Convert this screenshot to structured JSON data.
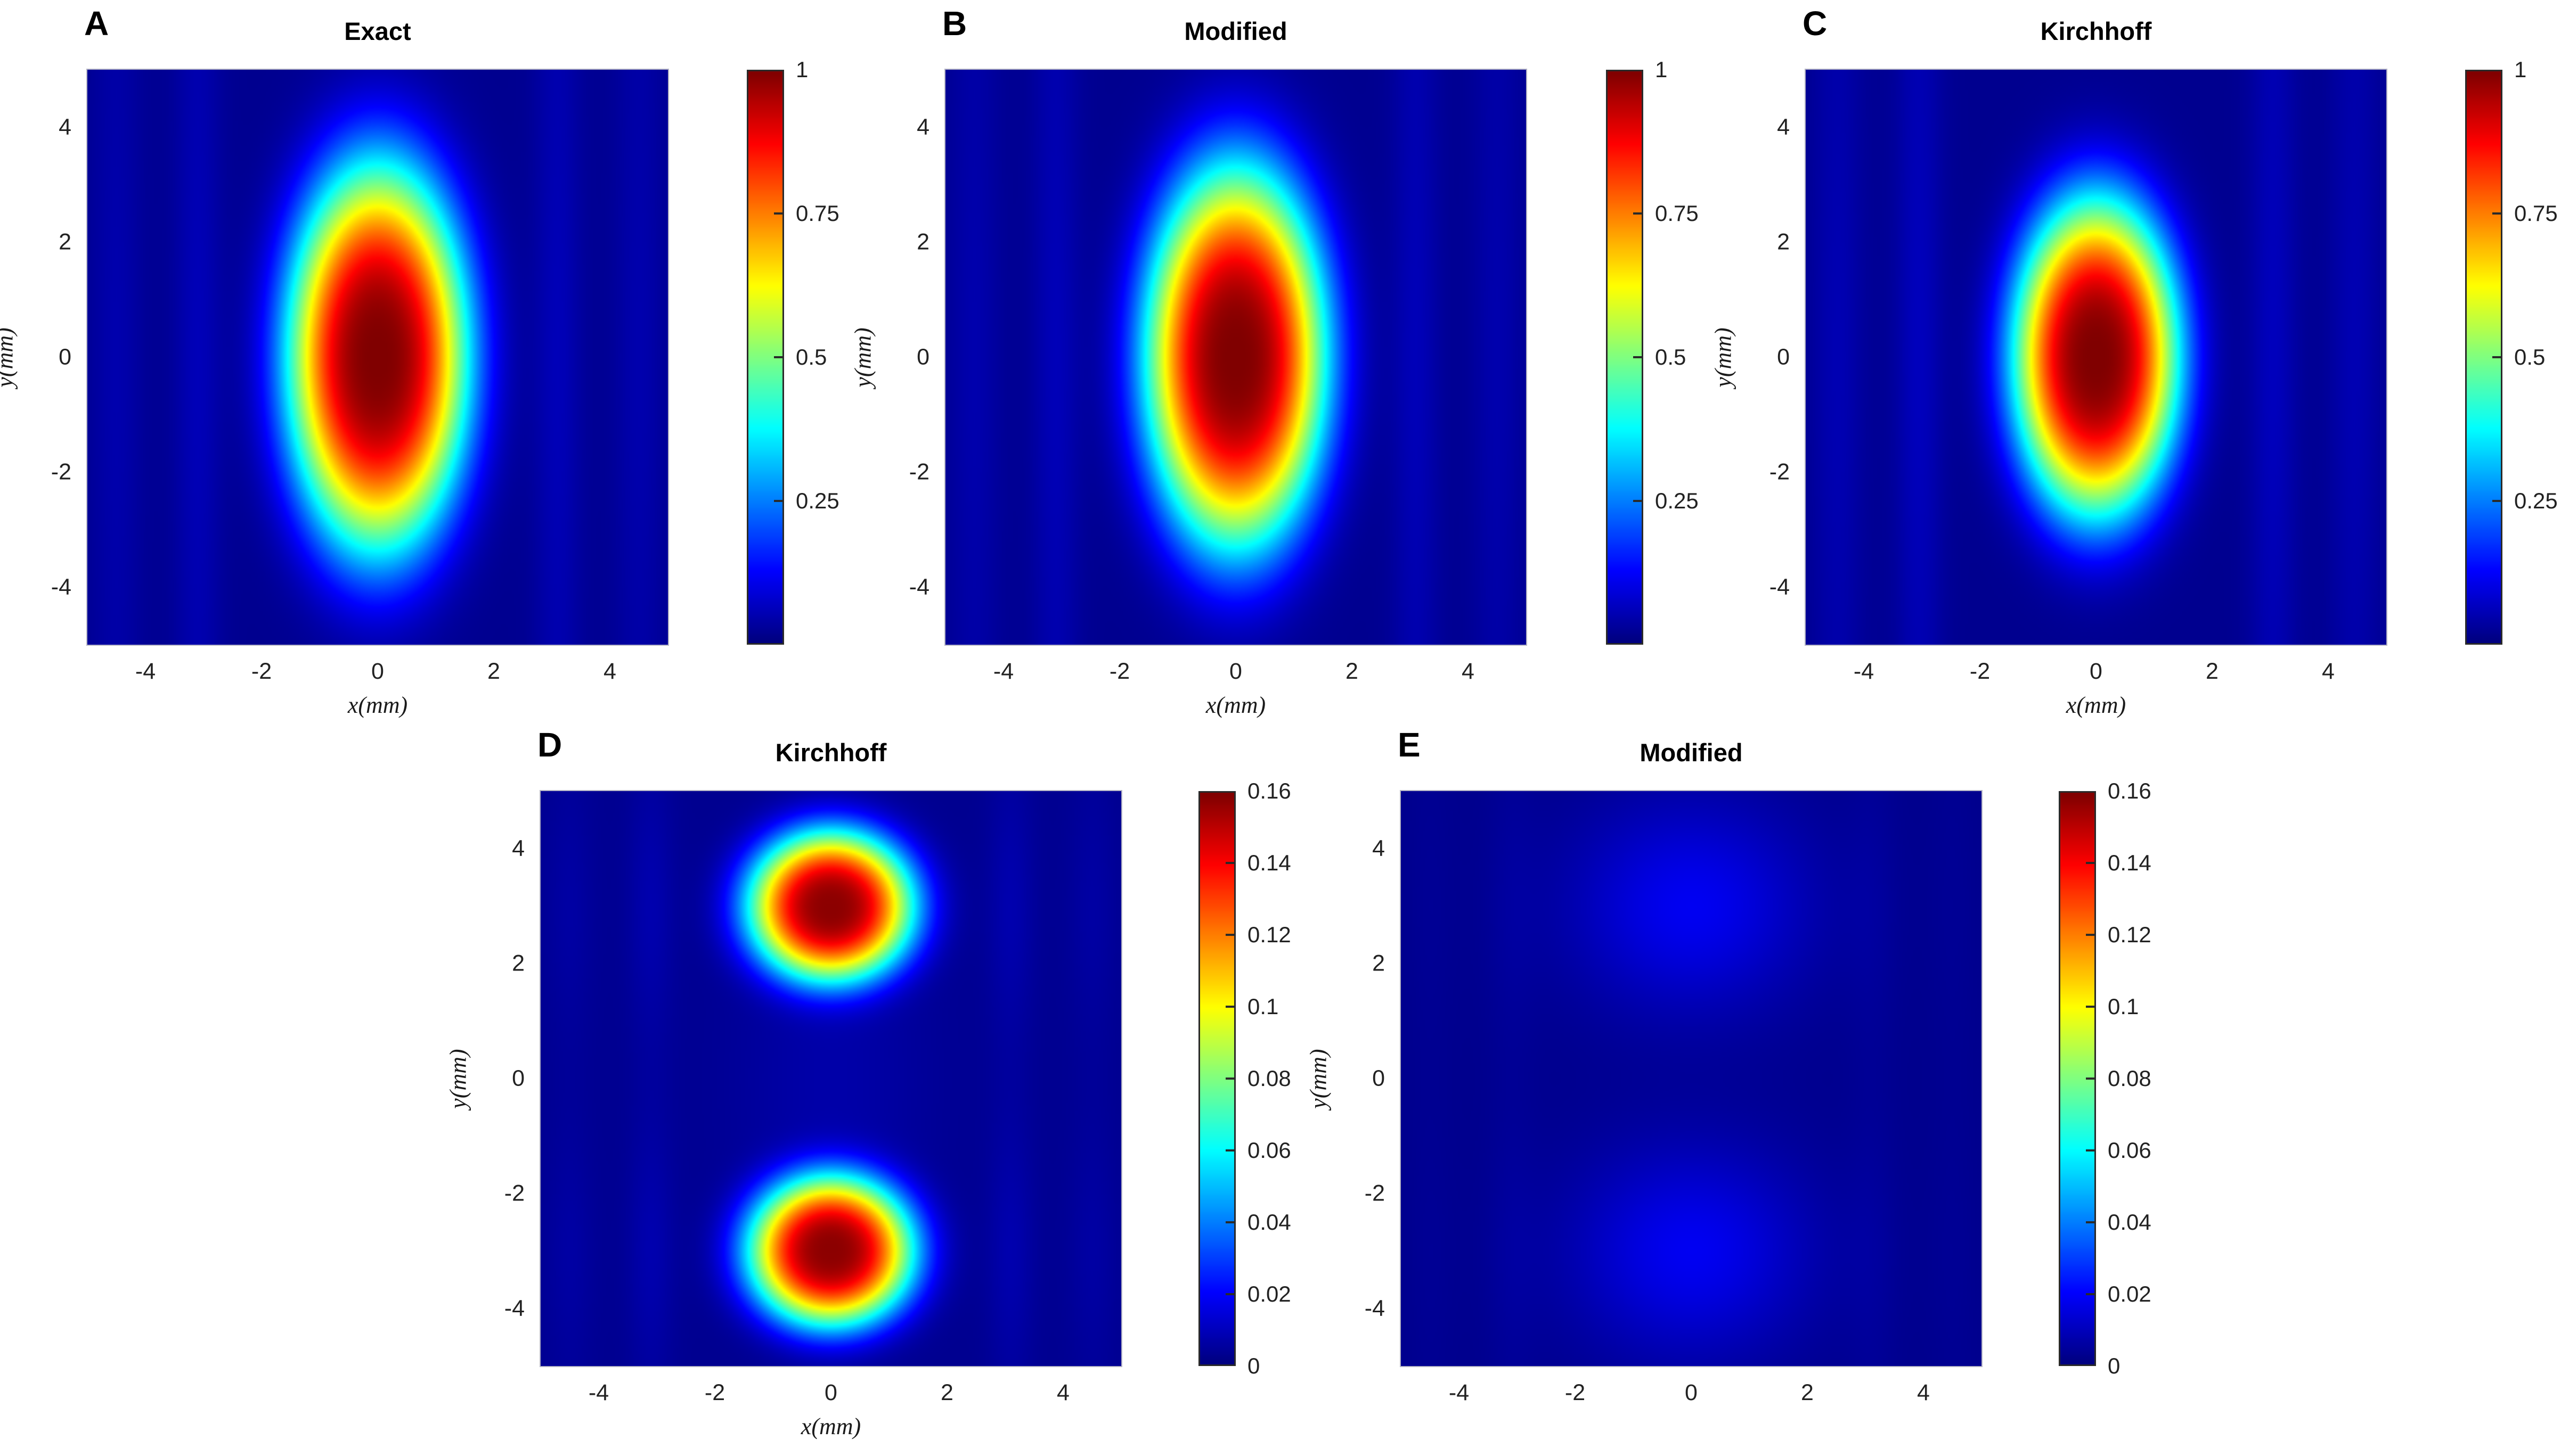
{
  "figure": {
    "background": "#ffffff",
    "colormap": "jet",
    "min_color": "#000080",
    "max_color": "#800000"
  },
  "chart_data": [
    {
      "id": "A",
      "panel_label": "A",
      "type": "heatmap",
      "title": "Exact",
      "xlabel": "x(mm)",
      "ylabel": "y(mm)",
      "x_range": [
        -5,
        5
      ],
      "y_range": [
        -5,
        5
      ],
      "x_ticks": [
        -4,
        -2,
        0,
        2,
        4
      ],
      "y_ticks": [
        4,
        2,
        0,
        -2,
        -4
      ],
      "colorbar": {
        "min": 0,
        "max": 1,
        "ticks": [
          {
            "value": 1,
            "label": "1"
          },
          {
            "value": 0.75,
            "label": "0.75"
          },
          {
            "value": 0.5,
            "label": "0.5"
          },
          {
            "value": 0.25,
            "label": "0.25"
          }
        ]
      },
      "model": {
        "base": 0.015,
        "blobs": [
          {
            "cx": 0,
            "cy": 0,
            "rx": 1.55,
            "ry": 3.35,
            "amp": 0.985,
            "power": 3
          }
        ],
        "stripes": [
          {
            "x0": 3.1,
            "sx": 0.42,
            "amp": 0.04,
            "ymod": {
              "floor": 0.7,
              "centers": [
                0
              ],
              "sy": 4.0
            }
          },
          {
            "x0": 4.5,
            "sx": 0.45,
            "amp": 0.03,
            "ymod": {
              "floor": 0.7,
              "centers": [
                0
              ],
              "sy": 4.0
            }
          }
        ]
      }
    },
    {
      "id": "B",
      "panel_label": "B",
      "type": "heatmap",
      "title": "Modified",
      "xlabel": "x(mm)",
      "ylabel": "y(mm)",
      "x_range": [
        -5,
        5
      ],
      "y_range": [
        -5,
        5
      ],
      "x_ticks": [
        -4,
        -2,
        0,
        2,
        4
      ],
      "y_ticks": [
        4,
        2,
        0,
        -2,
        -4
      ],
      "colorbar": {
        "min": 0,
        "max": 1,
        "ticks": [
          {
            "value": 1,
            "label": "1"
          },
          {
            "value": 0.75,
            "label": "0.75"
          },
          {
            "value": 0.5,
            "label": "0.5"
          },
          {
            "value": 0.25,
            "label": "0.25"
          }
        ]
      },
      "model": {
        "base": 0.015,
        "blobs": [
          {
            "cx": 0,
            "cy": 0,
            "rx": 1.55,
            "ry": 3.3,
            "amp": 0.985,
            "power": 3
          }
        ],
        "stripes": [
          {
            "x0": 3.1,
            "sx": 0.42,
            "amp": 0.04,
            "ymod": {
              "floor": 0.7,
              "centers": [
                0
              ],
              "sy": 4.0
            }
          },
          {
            "x0": 4.5,
            "sx": 0.45,
            "amp": 0.03,
            "ymod": {
              "floor": 0.7,
              "centers": [
                0
              ],
              "sy": 4.0
            }
          }
        ]
      }
    },
    {
      "id": "C",
      "panel_label": "C",
      "type": "heatmap",
      "title": "Kirchhoff",
      "xlabel": "x(mm)",
      "ylabel": "y(mm)",
      "x_range": [
        -5,
        5
      ],
      "y_range": [
        -5,
        5
      ],
      "x_ticks": [
        -4,
        -2,
        0,
        2,
        4
      ],
      "y_ticks": [
        4,
        2,
        0,
        -2,
        -4
      ],
      "colorbar": {
        "min": 0,
        "max": 1,
        "ticks": [
          {
            "value": 1,
            "label": "1"
          },
          {
            "value": 0.75,
            "label": "0.75"
          },
          {
            "value": 0.5,
            "label": "0.5"
          },
          {
            "value": 0.25,
            "label": "0.25"
          }
        ]
      },
      "model": {
        "base": 0.015,
        "blobs": [
          {
            "cx": 0,
            "cy": 0,
            "rx": 1.42,
            "ry": 2.75,
            "amp": 0.985,
            "power": 3
          }
        ],
        "stripes": [
          {
            "x0": 3.05,
            "sx": 0.42,
            "amp": 0.045,
            "ymod": {
              "floor": 0.7,
              "centers": [
                0
              ],
              "sy": 4.0
            }
          },
          {
            "x0": 4.45,
            "sx": 0.45,
            "amp": 0.035,
            "ymod": {
              "floor": 0.7,
              "centers": [
                0
              ],
              "sy": 4.0
            }
          }
        ]
      }
    },
    {
      "id": "D",
      "panel_label": "D",
      "type": "heatmap",
      "title": "Kirchhoff",
      "xlabel": "x(mm)",
      "ylabel": "y(mm)",
      "x_range": [
        -5,
        5
      ],
      "y_range": [
        -5,
        5
      ],
      "x_ticks": [
        -4,
        -2,
        0,
        2,
        4
      ],
      "y_ticks": [
        4,
        2,
        0,
        -2,
        -4
      ],
      "colorbar": {
        "min": 0,
        "max": 0.16,
        "ticks": [
          {
            "value": 0.16,
            "label": "0.16"
          },
          {
            "value": 0.14,
            "label": "0.14"
          },
          {
            "value": 0.12,
            "label": "0.12"
          },
          {
            "value": 0.1,
            "label": "0.1"
          },
          {
            "value": 0.08,
            "label": "0.08"
          },
          {
            "value": 0.06,
            "label": "0.06"
          },
          {
            "value": 0.04,
            "label": "0.04"
          },
          {
            "value": 0.02,
            "label": "0.02"
          },
          {
            "value": 0,
            "label": "0"
          }
        ]
      },
      "model": {
        "base": 0.015,
        "blobs": [
          {
            "cx": 0,
            "cy": 3,
            "rx": 1.42,
            "ry": 1.3,
            "amp": 0.96,
            "power": 3
          },
          {
            "cx": 0,
            "cy": -3,
            "rx": 1.42,
            "ry": 1.3,
            "amp": 0.96,
            "power": 3
          },
          {
            "cx": 0,
            "cy": 0,
            "rx": 1.7,
            "ry": 3.6,
            "amp": 0.025,
            "power": 2
          }
        ],
        "stripes": [
          {
            "x0": 3.1,
            "sx": 0.42,
            "amp": 0.03,
            "ymod": {
              "floor": 0.3,
              "centers": [
                3,
                -3
              ],
              "sy": 2.0
            }
          },
          {
            "x0": 4.5,
            "sx": 0.45,
            "amp": 0.02,
            "ymod": {
              "floor": 0.3,
              "centers": [
                3,
                -3
              ],
              "sy": 2.0
            }
          }
        ]
      }
    },
    {
      "id": "E",
      "panel_label": "E",
      "type": "heatmap",
      "title": "Modified",
      "xlabel": "",
      "ylabel": "y(mm)",
      "x_range": [
        -5,
        5
      ],
      "y_range": [
        -5,
        5
      ],
      "x_ticks": [
        -4,
        -2,
        0,
        2,
        4
      ],
      "y_ticks": [
        4,
        2,
        0,
        -2,
        -4
      ],
      "colorbar": {
        "min": 0,
        "max": 0.16,
        "ticks": [
          {
            "value": 0.16,
            "label": "0.16"
          },
          {
            "value": 0.14,
            "label": "0.14"
          },
          {
            "value": 0.12,
            "label": "0.12"
          },
          {
            "value": 0.1,
            "label": "0.1"
          },
          {
            "value": 0.08,
            "label": "0.08"
          },
          {
            "value": 0.06,
            "label": "0.06"
          },
          {
            "value": 0.04,
            "label": "0.04"
          },
          {
            "value": 0.02,
            "label": "0.02"
          },
          {
            "value": 0,
            "label": "0"
          }
        ]
      },
      "model": {
        "base": 0.012,
        "blobs": [
          {
            "cx": 0,
            "cy": 3,
            "rx": 2.0,
            "ry": 1.8,
            "amp": 0.1,
            "power": 2
          },
          {
            "cx": 0,
            "cy": -3,
            "rx": 2.0,
            "ry": 1.8,
            "amp": 0.1,
            "power": 2
          }
        ],
        "stripes": [
          {
            "x0": 3.1,
            "sx": 0.45,
            "amp": 0.012,
            "ymod": {
              "floor": 0.5,
              "centers": [
                3,
                -3
              ],
              "sy": 2.2
            }
          },
          {
            "x0": 4.5,
            "sx": 0.45,
            "amp": 0.008,
            "ymod": {
              "floor": 0.5,
              "centers": [
                3,
                -3
              ],
              "sy": 2.2
            }
          }
        ]
      }
    }
  ]
}
